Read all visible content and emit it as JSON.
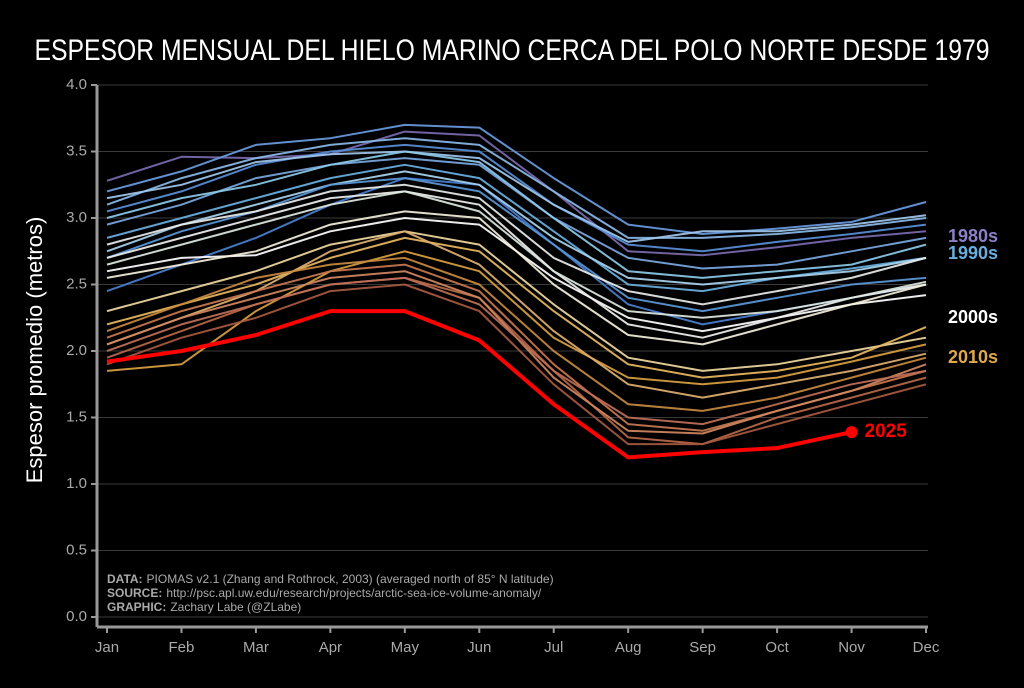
{
  "chart_data": {
    "type": "line",
    "title": "ESPESOR MENSUAL DEL HIELO MARINO CERCA DEL POLO NORTE DESDE 1979",
    "y_label": "Espesor promedio (metros)",
    "categories": [
      "Jan",
      "Feb",
      "Mar",
      "Apr",
      "May",
      "Jun",
      "Jul",
      "Aug",
      "Sep",
      "Oct",
      "Nov",
      "Dec"
    ],
    "ylim": [
      0,
      4
    ],
    "yticks": [
      {
        "value": 0,
        "label": "0.0"
      },
      0.5,
      {
        "value": 1,
        "label": "1.0"
      },
      1.5,
      {
        "value": 2,
        "label": "2.0"
      },
      2.5,
      {
        "value": 3,
        "label": "3.0"
      },
      3.5,
      {
        "value": 4,
        "label": "4.0"
      }
    ],
    "grid": true,
    "series": [
      {
        "color": "#7b6bb0",
        "values": [
          3.28,
          3.46,
          3.45,
          3.48,
          3.65,
          3.62,
          3.2,
          2.75,
          2.72,
          2.78,
          2.85,
          2.9
        ]
      },
      {
        "color": "#6a9be0",
        "values": [
          3.2,
          3.35,
          3.55,
          3.6,
          3.7,
          3.68,
          3.3,
          2.95,
          2.88,
          2.92,
          2.97,
          3.12
        ]
      },
      {
        "color": "#8ab8e8",
        "values": [
          3.1,
          3.3,
          3.45,
          3.55,
          3.6,
          3.55,
          3.2,
          2.85,
          2.85,
          2.88,
          2.93,
          3.0
        ]
      },
      {
        "color": "#5a8fd8",
        "values": [
          3.05,
          3.2,
          3.4,
          3.5,
          3.55,
          3.5,
          3.1,
          2.8,
          2.75,
          2.82,
          2.88,
          2.95
        ]
      },
      {
        "color": "#9fc8ee",
        "values": [
          3.15,
          3.25,
          3.42,
          3.48,
          3.5,
          3.45,
          3.1,
          2.82,
          2.9,
          2.9,
          2.95,
          3.02
        ]
      },
      {
        "color": "#7aa8e0",
        "values": [
          2.95,
          3.1,
          3.3,
          3.4,
          3.45,
          3.4,
          3.0,
          2.7,
          2.62,
          2.65,
          2.75,
          2.85
        ]
      },
      {
        "color": "#4a80d0",
        "values": [
          2.45,
          2.65,
          2.85,
          3.1,
          3.3,
          3.25,
          2.8,
          2.35,
          2.2,
          2.3,
          2.4,
          2.5
        ]
      },
      {
        "color": "#8ccae8",
        "values": [
          3.0,
          3.15,
          3.25,
          3.4,
          3.5,
          3.42,
          3.0,
          2.6,
          2.55,
          2.6,
          2.65,
          2.8
        ]
      },
      {
        "color": "#6ab0e0",
        "values": [
          2.85,
          3.0,
          3.15,
          3.3,
          3.4,
          3.3,
          2.9,
          2.5,
          2.45,
          2.55,
          2.62,
          2.7
        ]
      },
      {
        "color": "#a8d4ee",
        "values": [
          2.75,
          2.95,
          3.1,
          3.25,
          3.35,
          3.25,
          2.85,
          2.55,
          2.5,
          2.55,
          2.6,
          2.7
        ]
      },
      {
        "color": "#5a98d8",
        "values": [
          2.7,
          2.9,
          3.05,
          3.25,
          3.3,
          3.2,
          2.8,
          2.4,
          2.3,
          2.4,
          2.5,
          2.55
        ]
      },
      {
        "color": "#ffffff",
        "values": [
          2.6,
          2.7,
          2.72,
          2.9,
          3.0,
          2.95,
          2.55,
          2.25,
          2.15,
          2.25,
          2.35,
          2.42
        ]
      },
      {
        "color": "#f0f0f0",
        "values": [
          2.7,
          2.85,
          3.0,
          3.15,
          3.2,
          3.1,
          2.6,
          2.2,
          2.1,
          2.25,
          2.4,
          2.5
        ]
      },
      {
        "color": "#e8ecea",
        "values": [
          2.8,
          2.95,
          3.05,
          3.2,
          3.25,
          3.15,
          2.7,
          2.45,
          2.35,
          2.45,
          2.55,
          2.7
        ]
      },
      {
        "color": "#f4f0dc",
        "values": [
          2.55,
          2.65,
          2.75,
          2.95,
          3.05,
          3.0,
          2.5,
          2.12,
          2.05,
          2.2,
          2.35,
          2.5
        ]
      },
      {
        "color": "#dde8e0",
        "values": [
          2.65,
          2.8,
          2.95,
          3.1,
          3.2,
          3.05,
          2.6,
          2.3,
          2.25,
          2.3,
          2.4,
          2.52
        ]
      },
      {
        "color": "#f0d8a0",
        "values": [
          2.3,
          2.45,
          2.6,
          2.8,
          2.9,
          2.8,
          2.35,
          1.95,
          1.85,
          1.9,
          2.0,
          2.1
        ]
      },
      {
        "color": "#e8b860",
        "values": [
          2.2,
          2.35,
          2.5,
          2.7,
          2.85,
          2.75,
          2.3,
          1.9,
          1.8,
          1.85,
          1.95,
          2.18
        ]
      },
      {
        "color": "#d8a040",
        "values": [
          1.85,
          1.9,
          2.3,
          2.6,
          2.75,
          2.6,
          2.1,
          1.8,
          1.75,
          1.8,
          1.92,
          2.05
        ]
      },
      {
        "color": "#e0b070",
        "values": [
          2.05,
          2.25,
          2.45,
          2.75,
          2.9,
          2.65,
          2.15,
          1.75,
          1.65,
          1.75,
          1.85,
          1.98
        ]
      },
      {
        "color": "#c88a40",
        "values": [
          2.15,
          2.35,
          2.55,
          2.65,
          2.7,
          2.5,
          2.0,
          1.6,
          1.55,
          1.65,
          1.8,
          1.95
        ]
      },
      {
        "color": "#c87850",
        "values": [
          2.1,
          2.3,
          2.45,
          2.6,
          2.65,
          2.45,
          1.9,
          1.45,
          1.4,
          1.55,
          1.7,
          1.85
        ]
      },
      {
        "color": "#b86848",
        "values": [
          1.95,
          2.15,
          2.35,
          2.5,
          2.55,
          2.4,
          1.85,
          1.35,
          1.3,
          1.5,
          1.65,
          1.8
        ]
      },
      {
        "color": "#d08860",
        "values": [
          2.05,
          2.25,
          2.4,
          2.55,
          2.6,
          2.4,
          1.8,
          1.4,
          1.38,
          1.55,
          1.7,
          1.9
        ]
      },
      {
        "color": "#a85a40",
        "values": [
          1.9,
          2.1,
          2.25,
          2.45,
          2.5,
          2.3,
          1.75,
          1.3,
          1.3,
          1.45,
          1.6,
          1.75
        ]
      },
      {
        "color": "#c07058",
        "values": [
          2.0,
          2.2,
          2.35,
          2.5,
          2.55,
          2.35,
          1.85,
          1.5,
          1.45,
          1.6,
          1.75,
          1.85
        ]
      },
      {
        "name": "2025",
        "color": "#ff0000",
        "values": [
          1.92,
          2.0,
          2.12,
          2.3,
          2.3,
          2.08,
          1.6,
          1.2,
          1.24,
          1.27,
          1.39,
          null
        ]
      }
    ],
    "decade_labels": [
      {
        "label": "1980s",
        "color": "#8c80c8"
      },
      {
        "label": "1990s",
        "color": "#6aaee0"
      },
      {
        "label": "2000s",
        "color": "#ffffff"
      },
      {
        "label": "2010s",
        "color": "#e0a84a"
      }
    ],
    "notes": [
      {
        "key": "DATA:",
        "text": "PIOMAS v2.1 (Zhang and Rothrock, 2003) (averaged north of 85° N latitude)"
      },
      {
        "key": "SOURCE:",
        "text": "http://psc.apl.uw.edu/research/projects/arctic-sea-ice-volume-anomaly/"
      },
      {
        "key": "GRAPHIC:",
        "text": "Zachary Labe (@ZLabe)"
      }
    ]
  }
}
